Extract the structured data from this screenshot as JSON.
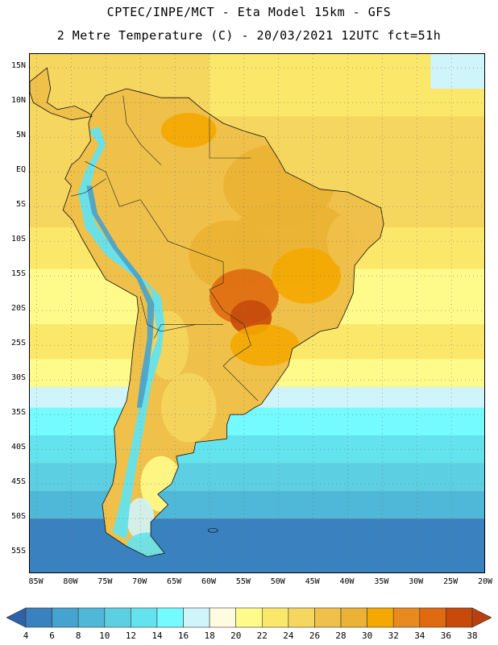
{
  "header": {
    "line1": "CPTEC/INPE/MCT -  Eta Model 15km - GFS",
    "line2": "2 Metre Temperature (C) - 20/03/2021 12UTC fct=51h"
  },
  "map": {
    "region": "South America",
    "lat_labels": [
      "15N",
      "10N",
      "5N",
      "EQ",
      "5S",
      "10S",
      "15S",
      "20S",
      "25S",
      "30S",
      "35S",
      "40S",
      "45S",
      "50S",
      "55S"
    ],
    "lat_values": [
      15,
      10,
      5,
      0,
      -5,
      -10,
      -15,
      -20,
      -25,
      -30,
      -35,
      -40,
      -45,
      -50,
      -55
    ],
    "lon_labels": [
      "85W",
      "80W",
      "75W",
      "70W",
      "65W",
      "60W",
      "55W",
      "50W",
      "45W",
      "40W",
      "35W",
      "30W",
      "25W",
      "20W"
    ],
    "lon_values": [
      -85,
      -80,
      -75,
      -70,
      -65,
      -60,
      -55,
      -50,
      -45,
      -40,
      -35,
      -30,
      -25,
      -20
    ],
    "lon_range": [
      -86,
      -20
    ],
    "lat_range": [
      -58,
      17
    ]
  },
  "colorbar": {
    "labels": [
      "4",
      "6",
      "8",
      "10",
      "12",
      "14",
      "16",
      "18",
      "20",
      "22",
      "24",
      "26",
      "28",
      "30",
      "32",
      "34",
      "36",
      "38"
    ],
    "bins": [
      "#2e62a8",
      "#3a82bf",
      "#45a3cf",
      "#4fb8d8",
      "#5ccfe3",
      "#63e3ee",
      "#74fbff",
      "#cff4fa",
      "#fffbe0",
      "#fffb8a",
      "#fbe86a",
      "#f5d65e",
      "#efc04a",
      "#ebb233",
      "#f5a800",
      "#e88a1e",
      "#e06a10",
      "#c84a0a",
      "#b8400e"
    ]
  }
}
